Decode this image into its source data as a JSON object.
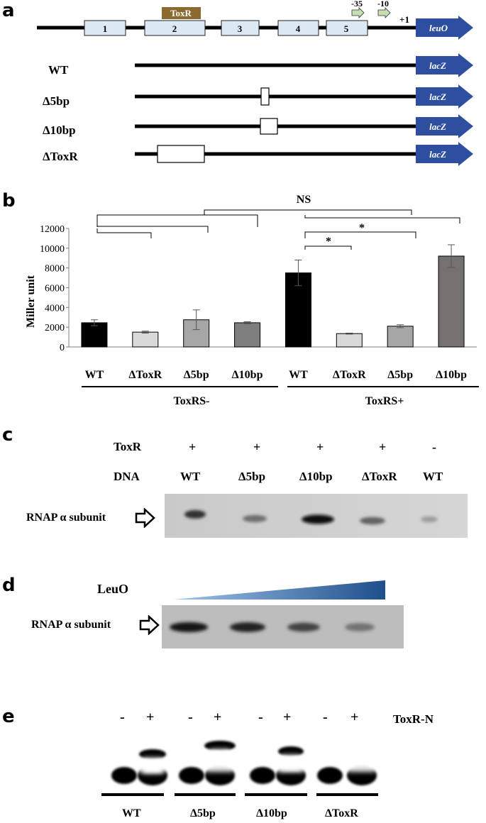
{
  "panel_letters": {
    "a": "a",
    "b": "b",
    "c": "c",
    "d": "d",
    "e": "e"
  },
  "panel_a": {
    "toxr_label": "ToxR",
    "exons": [
      "1",
      "2",
      "3",
      "4",
      "5"
    ],
    "promoter_labels": {
      "minus35": "-35",
      "minus10": "-10",
      "plus1": "+1"
    },
    "gene_label": "leuO",
    "reporter_label": "lacZ",
    "constructs": [
      "WT",
      "Δ5bp",
      "Δ10bp",
      "ΔToxR"
    ],
    "colors": {
      "toxr_box": "#8b6a2f",
      "gene_arrow": "#2e4fa0",
      "exon_fill": "#dce8f4",
      "promoter_arrow": "#c6dfb0"
    }
  },
  "panel_b": {
    "ylabel": "Miller unit",
    "ns_label": "NS",
    "star_label": "*",
    "group_labels": [
      "ToxRS-",
      "ToxRS+"
    ],
    "chart_data": {
      "type": "bar",
      "ylabel": "Miller unit",
      "ylim": [
        0,
        12000
      ],
      "yticks": [
        "0",
        "2000",
        "4000",
        "6000",
        "8000",
        "10000",
        "12000"
      ],
      "categories": [
        "WT",
        "ΔToxR",
        "Δ5bp",
        "Δ10bp",
        "WT",
        "ΔToxR",
        "Δ5bp",
        "Δ10bp"
      ],
      "groups": [
        "ToxRS-",
        "ToxRS-",
        "ToxRS-",
        "ToxRS-",
        "ToxRS+",
        "ToxRS+",
        "ToxRS+",
        "ToxRS+"
      ],
      "values": [
        2450,
        1500,
        2750,
        2450,
        7500,
        1350,
        2100,
        9200
      ],
      "errors": [
        300,
        100,
        1000,
        100,
        1300,
        50,
        150,
        1150
      ],
      "colors": [
        "#000000",
        "#d9d9d9",
        "#a6a6a6",
        "#7f7f7f",
        "#000000",
        "#d9d9d9",
        "#a6a6a6",
        "#767171"
      ],
      "annotations": [
        "NS",
        "*",
        "*"
      ]
    }
  },
  "panel_c": {
    "row_labels": {
      "toxr": "ToxR",
      "dna": "DNA"
    },
    "toxr_signs": [
      "+",
      "+",
      "+",
      "+",
      "-"
    ],
    "dna_labels": [
      "WT",
      "Δ5bp",
      "Δ10bp",
      "ΔToxR",
      "WT"
    ],
    "band_label": "RNAP α subunit",
    "band_intensity": [
      0.85,
      0.6,
      1.0,
      0.65,
      0.4
    ]
  },
  "panel_d": {
    "leuo_label": "LeuO",
    "band_label": "RNAP α subunit",
    "gradient_colors": [
      "#9fc4e8",
      "#1f4f8c"
    ],
    "band_intensity": [
      1.0,
      0.95,
      0.8,
      0.6
    ]
  },
  "panel_e": {
    "toxrn_label": "ToxR-N",
    "signs": [
      "-",
      "+",
      "-",
      "+",
      "-",
      "+",
      "-",
      "+"
    ],
    "group_labels": [
      "WT",
      "Δ5bp",
      "Δ10bp",
      "ΔToxR"
    ]
  }
}
